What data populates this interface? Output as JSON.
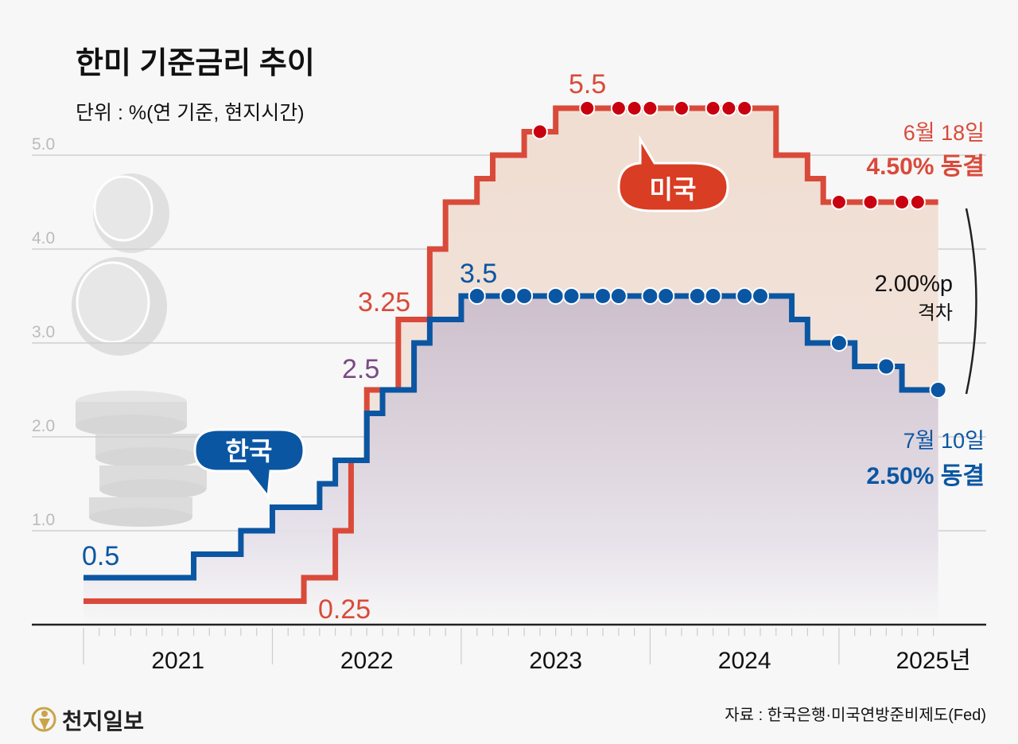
{
  "header": {
    "title": "한미 기준금리 추이",
    "subtitle": "단위 : %(연 기준, 현지시간)"
  },
  "footer": {
    "logo_text": "천지일보",
    "source": "자료 : 한국은행·미국연방준비제도(Fed)"
  },
  "colors": {
    "us_line": "#d94a3a",
    "us_dot": "#c8000f",
    "us_fill": "#f0ddd1",
    "kr_line": "#0b56a2",
    "kr_fill": "#c9bccb",
    "purple_label": "#7a4a85",
    "grid": "#cfcfcf"
  },
  "chart_data": {
    "type": "line",
    "step": true,
    "title": "한미 기준금리 추이",
    "ylabel": "%",
    "ylim": [
      0,
      5.5
    ],
    "yticks": [
      "1.0",
      "2.0",
      "3.0",
      "4.0",
      "5.0"
    ],
    "grid": true,
    "xticks": [
      "2021",
      "2022",
      "2023",
      "2024",
      "2025년"
    ],
    "x_end": "2025-07",
    "series": [
      {
        "name": "미국",
        "steps": [
          [
            "2021-01",
            0.25
          ],
          [
            "2022-03",
            0.5
          ],
          [
            "2022-05",
            1.0
          ],
          [
            "2022-06",
            1.75
          ],
          [
            "2022-07",
            2.5
          ],
          [
            "2022-09",
            3.25
          ],
          [
            "2022-11",
            4.0
          ],
          [
            "2022-12",
            4.5
          ],
          [
            "2023-02",
            4.75
          ],
          [
            "2023-03",
            5.0
          ],
          [
            "2023-05",
            5.25
          ],
          [
            "2023-07",
            5.5
          ],
          [
            "2024-09",
            5.0
          ],
          [
            "2024-11",
            4.75
          ],
          [
            "2024-12",
            4.5
          ]
        ],
        "holds": [
          [
            "2023-06",
            5.25
          ],
          [
            "2023-09",
            5.5
          ],
          [
            "2023-11",
            5.5
          ],
          [
            "2023-12",
            5.5
          ],
          [
            "2024-01",
            5.5
          ],
          [
            "2024-03",
            5.5
          ],
          [
            "2024-05",
            5.5
          ],
          [
            "2024-06",
            5.5
          ],
          [
            "2024-07",
            5.5
          ],
          [
            "2025-01",
            4.5
          ],
          [
            "2025-03",
            4.5
          ],
          [
            "2025-05",
            4.5
          ],
          [
            "2025-06",
            4.5
          ]
        ]
      },
      {
        "name": "한국",
        "steps": [
          [
            "2021-01",
            0.5
          ],
          [
            "2021-08",
            0.75
          ],
          [
            "2021-11",
            1.0
          ],
          [
            "2022-01",
            1.25
          ],
          [
            "2022-04",
            1.5
          ],
          [
            "2022-05",
            1.75
          ],
          [
            "2022-07",
            2.25
          ],
          [
            "2022-08",
            2.5
          ],
          [
            "2022-10",
            3.0
          ],
          [
            "2022-11",
            3.25
          ],
          [
            "2023-01",
            3.5
          ],
          [
            "2024-10",
            3.25
          ],
          [
            "2024-11",
            3.0
          ],
          [
            "2025-02",
            2.75
          ],
          [
            "2025-05",
            2.5
          ]
        ],
        "holds": [
          [
            "2023-02",
            3.5
          ],
          [
            "2023-04",
            3.5
          ],
          [
            "2023-05",
            3.5
          ],
          [
            "2023-07",
            3.5
          ],
          [
            "2023-08",
            3.5
          ],
          [
            "2023-10",
            3.5
          ],
          [
            "2023-11",
            3.5
          ],
          [
            "2024-01",
            3.5
          ],
          [
            "2024-02",
            3.5
          ],
          [
            "2024-04",
            3.5
          ],
          [
            "2024-05",
            3.5
          ],
          [
            "2024-07",
            3.5
          ],
          [
            "2024-08",
            3.5
          ],
          [
            "2025-01",
            3.0
          ],
          [
            "2025-04",
            2.75
          ],
          [
            "2025-07",
            2.5
          ]
        ]
      }
    ],
    "annotations": {
      "kr_start": "0.5",
      "us_start": "0.25",
      "us_2_5": "2.5",
      "us_3_25": "3.25",
      "kr_peak": "3.5",
      "us_peak": "5.5",
      "us_bubble": "미국",
      "kr_bubble": "한국",
      "us_date": "6월 18일",
      "us_status": "4.50% 동결",
      "gap_value": "2.00%p",
      "gap_label": "격차",
      "kr_date": "7월 10일",
      "kr_status": "2.50% 동결"
    }
  }
}
